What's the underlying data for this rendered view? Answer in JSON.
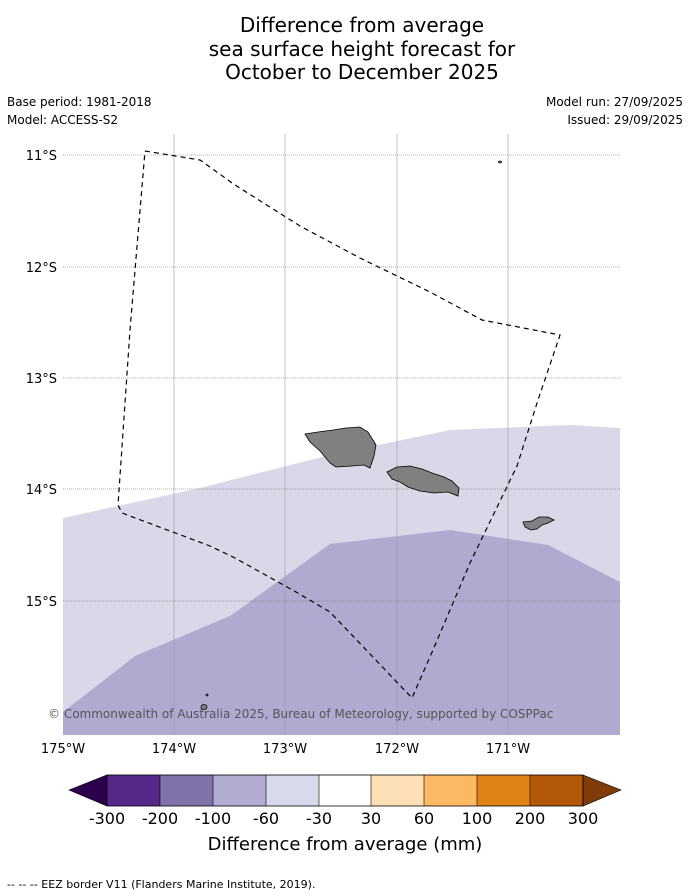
{
  "title": {
    "line1": "Difference from average",
    "line2": "sea surface height forecast for",
    "line3": "October to December 2025"
  },
  "meta": {
    "base_period": "Base period: 1981-2018",
    "model": "Model: ACCESS-S2",
    "model_run": "Model run: 27/09/2025",
    "issued": "Issued: 29/09/2025"
  },
  "map": {
    "lat_labels": [
      "11°S",
      "12°S",
      "13°S",
      "14°S",
      "15°S"
    ],
    "lon_labels": [
      "175°W",
      "174°W",
      "173°W",
      "172°W",
      "171°W"
    ],
    "copyright": "© Commonwealth of Australia 2025, Bureau of Meteorology, supported by COSPPac",
    "colors": {
      "land": "#808080",
      "band_-60_-30": "#d8d8e8",
      "band_-100_-60": "#b0aad0"
    }
  },
  "colorbar": {
    "title": "Difference from average (mm)",
    "ticks": [
      "-300",
      "-200",
      "-100",
      "-60",
      "-30",
      "30",
      "60",
      "100",
      "200",
      "300"
    ],
    "colors": [
      "#2d004b",
      "#542788",
      "#8073ac",
      "#b2abd2",
      "#d8daeb",
      "#ffffff",
      "#fee0b6",
      "#fdb863",
      "#e08214",
      "#b35806",
      "#7f3b08"
    ]
  },
  "footer": "--  --  -- EEZ border V11 (Flanders Marine Institute, 2019)."
}
